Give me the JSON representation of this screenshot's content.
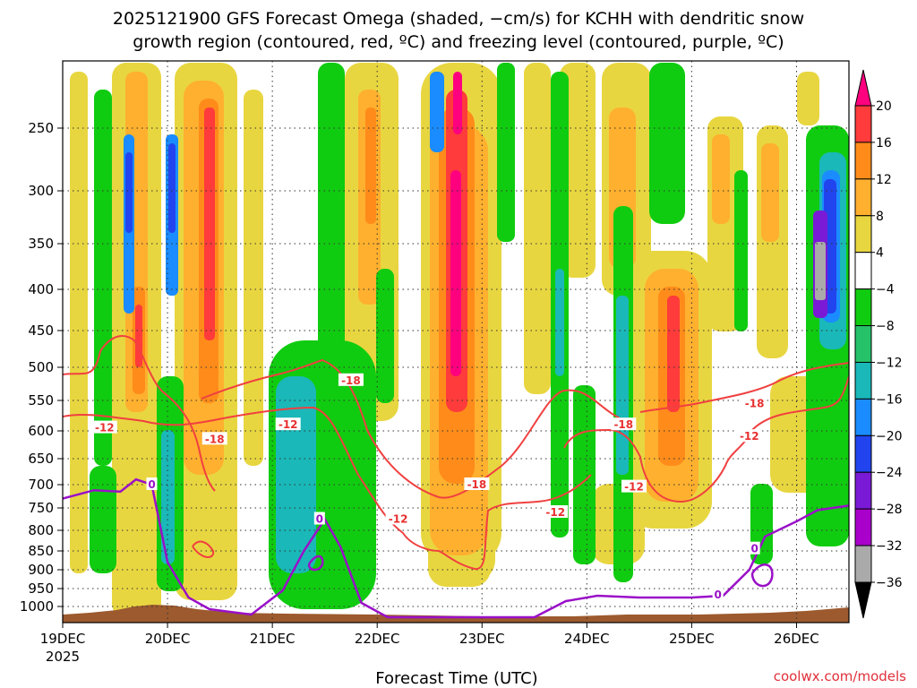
{
  "chart_data": {
    "type": "heatmap",
    "title_line1": "2025121900 GFS Forecast Omega (shaded, −cm/s) for KCHH with dendritic snow",
    "title_line2": "growth region (contoured, red, ºC) and freezing level (contoured, purple, ºC)",
    "xlabel": "Forecast Time (UTC)",
    "credit": "coolwx.com/models",
    "year_label": "2025",
    "x_ticks": [
      "19DEC",
      "20DEC",
      "21DEC",
      "22DEC",
      "23DEC",
      "24DEC",
      "25DEC",
      "26DEC"
    ],
    "x_range_days": [
      19,
      26.5
    ],
    "y_ticks": [
      250,
      300,
      350,
      400,
      450,
      500,
      550,
      600,
      650,
      700,
      750,
      800,
      850,
      900,
      950,
      1000
    ],
    "y_labels": [
      "250",
      "300",
      "350",
      "400",
      "450",
      "500",
      "550",
      "600",
      "650",
      "700",
      "750",
      "800",
      "850",
      "900",
      "950",
      "1000"
    ],
    "ylim_hpa": [
      200,
      1030
    ],
    "grid": true,
    "colorbar": {
      "labels": [
        "20",
        "16",
        "12",
        "8",
        "4",
        "−4",
        "−8",
        "−12",
        "−16",
        "−20",
        "−24",
        "−28",
        "−32",
        "−36"
      ],
      "colors": [
        "#ff007f",
        "#ff3b3b",
        "#ff8c1a",
        "#ffb02e",
        "#e8d640",
        "#ffffff",
        "#10cc10",
        "#26c26a",
        "#1ab8b8",
        "#1a8cff",
        "#2244ee",
        "#7a1ad6",
        "#aa00cc",
        "#aaaaaa"
      ],
      "value_bins": [
        [
          20,
          99
        ],
        [
          16,
          20
        ],
        [
          12,
          16
        ],
        [
          8,
          12
        ],
        [
          4,
          8
        ],
        [
          -4,
          4
        ],
        [
          -8,
          -4
        ],
        [
          -12,
          -8
        ],
        [
          -16,
          -12
        ],
        [
          -20,
          -16
        ],
        [
          -24,
          -20
        ],
        [
          -28,
          -24
        ],
        [
          -32,
          -28
        ],
        [
          -36,
          -32
        ]
      ]
    },
    "contour_labels": {
      "dgz_red": [
        {
          "text": "-12",
          "day": 19.4,
          "p": 595
        },
        {
          "text": "-18",
          "day": 20.45,
          "p": 615
        },
        {
          "text": "-12",
          "day": 21.15,
          "p": 590
        },
        {
          "text": "-18",
          "day": 21.75,
          "p": 520
        },
        {
          "text": "-18",
          "day": 22.95,
          "p": 700
        },
        {
          "text": "-12",
          "day": 22.2,
          "p": 775
        },
        {
          "text": "-12",
          "day": 23.7,
          "p": 760
        },
        {
          "text": "-18",
          "day": 24.35,
          "p": 590
        },
        {
          "text": "-12",
          "day": 24.45,
          "p": 705
        },
        {
          "text": "-18",
          "day": 25.6,
          "p": 555
        },
        {
          "text": "-12",
          "day": 25.55,
          "p": 610
        }
      ],
      "freezing_purple": [
        {
          "text": "0",
          "day": 19.85,
          "p": 700
        },
        {
          "text": "0",
          "day": 21.45,
          "p": 775
        },
        {
          "text": "0",
          "day": 25.25,
          "p": 968
        },
        {
          "text": "0",
          "day": 25.6,
          "p": 845
        }
      ]
    },
    "freezing_level_hpa": [
      [
        19.0,
        730
      ],
      [
        19.3,
        712
      ],
      [
        19.55,
        715
      ],
      [
        19.7,
        690
      ],
      [
        19.85,
        700
      ],
      [
        20.0,
        880
      ],
      [
        20.2,
        975
      ],
      [
        20.4,
        1005
      ],
      [
        20.8,
        1015
      ],
      [
        21.1,
        955
      ],
      [
        21.3,
        850
      ],
      [
        21.5,
        775
      ],
      [
        21.65,
        840
      ],
      [
        21.85,
        990
      ],
      [
        22.1,
        1020
      ],
      [
        23.5,
        1020
      ],
      [
        23.8,
        985
      ],
      [
        24.1,
        970
      ],
      [
        24.5,
        975
      ],
      [
        25.0,
        975
      ],
      [
        25.3,
        970
      ],
      [
        25.55,
        900
      ],
      [
        25.7,
        815
      ],
      [
        26.0,
        780
      ],
      [
        26.2,
        755
      ],
      [
        26.5,
        745
      ]
    ]
  }
}
